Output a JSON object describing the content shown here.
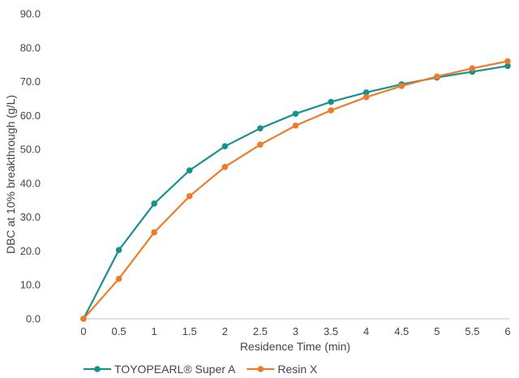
{
  "chart_data": {
    "type": "line",
    "title": "",
    "xlabel": "Residence Time (min)",
    "ylabel": "DBC at 10% breakthrough (g/L)",
    "x": [
      0,
      0.5,
      1,
      1.5,
      2,
      2.5,
      3,
      3.5,
      4,
      4.5,
      5,
      5.5,
      6
    ],
    "x_tick_labels": [
      "0",
      "0.5",
      "1",
      "1.5",
      "2",
      "2.5",
      "3",
      "3.5",
      "4",
      "4.5",
      "5",
      "5.5",
      "6"
    ],
    "y_tick_labels": [
      "0.0",
      "10.0",
      "20.0",
      "30.0",
      "40.0",
      "50.0",
      "60.0",
      "70.0",
      "80.0",
      "90.0"
    ],
    "xlim": [
      0,
      6
    ],
    "ylim": [
      0,
      90
    ],
    "grid": false,
    "legend_position": "bottom-left",
    "series": [
      {
        "name": "TOYOPEARL® Super A",
        "color": "#17918b",
        "values": [
          0,
          20.3,
          34.0,
          43.8,
          50.9,
          56.2,
          60.5,
          64.0,
          66.8,
          69.2,
          71.2,
          72.9,
          74.6
        ]
      },
      {
        "name": "Resin X",
        "color": "#ef7a2b",
        "values": [
          0,
          11.8,
          25.5,
          36.2,
          44.8,
          51.4,
          57.0,
          61.5,
          65.4,
          68.7,
          71.5,
          73.9,
          76.0
        ]
      }
    ]
  }
}
